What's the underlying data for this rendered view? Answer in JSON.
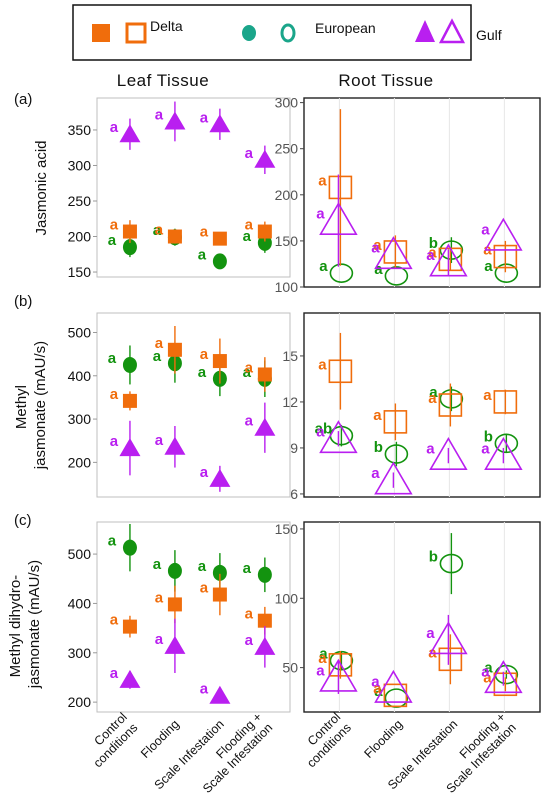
{
  "colors": {
    "Delta": "#f06d0c",
    "European": "#13930f",
    "Gulf": "#b91ff0",
    "European_legend": "#1aa58a"
  },
  "legend": {
    "items": [
      {
        "name": "Delta",
        "marker": "square"
      },
      {
        "name": "European",
        "marker": "circle"
      },
      {
        "name": "Gulf",
        "marker": "triangle"
      }
    ]
  },
  "headers": {
    "leaf": "Leaf  Tissue",
    "root": "Root  Tissue"
  },
  "panel_labels": [
    "(a)",
    "(b)",
    "(c)"
  ],
  "row_ylabels": [
    [
      "Jasmonic acid"
    ],
    [
      "Methyl",
      "jasmonate (mAU/s)"
    ],
    [
      "Methyl dihydro-",
      "jasmonate (mAU/s)"
    ]
  ],
  "x_categories": [
    [
      "Control",
      "conditions"
    ],
    [
      "Flooding"
    ],
    [
      "Scale Infestation"
    ],
    [
      "Flooding +",
      "Scale Infestation"
    ]
  ],
  "chart_data": [
    {
      "type": "scatter",
      "row": "(a)",
      "tissue": "Leaf Tissue",
      "ylabel": "Jasmonic acid",
      "ylim": [
        143,
        395
      ],
      "yticks": [
        150,
        200,
        250,
        300,
        350
      ],
      "series": [
        {
          "name": "Delta",
          "values": [
            207,
            200,
            197,
            207
          ],
          "err": [
            16,
            10,
            0,
            14
          ],
          "letters": [
            "a",
            "a",
            "a",
            "a"
          ]
        },
        {
          "name": "European",
          "values": [
            185,
            199,
            165,
            191
          ],
          "err": [
            14,
            12,
            10,
            14
          ],
          "letters": [
            "a",
            "a",
            "a",
            "a"
          ]
        },
        {
          "name": "Gulf",
          "values": [
            344,
            362,
            358,
            308
          ],
          "err": [
            22,
            28,
            22,
            20
          ],
          "letters": [
            "a",
            "a",
            "a",
            "a"
          ]
        }
      ]
    },
    {
      "type": "scatter",
      "row": "(a)",
      "tissue": "Root Tissue",
      "ylabel": "",
      "ylim": [
        100,
        305
      ],
      "yticks": [
        100,
        150,
        200,
        250,
        300
      ],
      "series": [
        {
          "name": "Delta",
          "values": [
            208,
            138,
            130,
            133
          ],
          "err": [
            85,
            18,
            12,
            17
          ],
          "letters": [
            "a",
            "a",
            "a",
            "a"
          ]
        },
        {
          "name": "European",
          "values": [
            115,
            112,
            140,
            115
          ],
          "err": [
            0,
            0,
            14,
            0
          ],
          "letters": [
            "a",
            "a",
            "b",
            "a"
          ]
        },
        {
          "name": "Gulf",
          "values": [
            172,
            135,
            127,
            155
          ],
          "err": [
            50,
            0,
            14,
            0
          ],
          "letters": [
            "a",
            "a",
            "a",
            "a"
          ]
        }
      ]
    },
    {
      "type": "scatter",
      "row": "(b)",
      "tissue": "Leaf Tissue",
      "ylabel": "Methyl jasmonate (mAU/s)",
      "ylim": [
        120,
        545
      ],
      "yticks": [
        200,
        300,
        400,
        500
      ],
      "series": [
        {
          "name": "Delta",
          "values": [
            342,
            460,
            434,
            403
          ],
          "err": [
            22,
            55,
            52,
            40
          ],
          "letters": [
            "a",
            "a",
            "a",
            "a"
          ]
        },
        {
          "name": "European",
          "values": [
            425,
            429,
            393,
            393
          ],
          "err": [
            45,
            45,
            40,
            42
          ],
          "letters": [
            "a",
            "a",
            "a",
            "a"
          ]
        },
        {
          "name": "Gulf",
          "values": [
            233,
            236,
            162,
            280
          ],
          "err": [
            63,
            48,
            30,
            58
          ],
          "letters": [
            "a",
            "a",
            "a",
            "a"
          ]
        }
      ]
    },
    {
      "type": "scatter",
      "row": "(b)",
      "tissue": "Root Tissue",
      "ylabel": "",
      "ylim": [
        5.8,
        17.8
      ],
      "yticks": [
        6,
        9,
        12,
        15
      ],
      "series": [
        {
          "name": "Delta",
          "values": [
            14.0,
            10.7,
            11.8,
            12.0
          ],
          "err": [
            2.5,
            1.2,
            1.4,
            0.8
          ],
          "letters": [
            "a",
            "a",
            "a",
            "a"
          ]
        },
        {
          "name": "European",
          "values": [
            9.8,
            8.6,
            12.2,
            9.3
          ],
          "err": [
            0.7,
            0.8,
            0.8,
            0.6
          ],
          "letters": [
            "ab",
            "b",
            "a",
            "b"
          ]
        },
        {
          "name": "Gulf",
          "values": [
            9.6,
            6.9,
            8.5,
            8.5
          ],
          "err": [
            0.5,
            0.5,
            0.5,
            0.5
          ],
          "letters": [
            "a",
            "a",
            "a",
            "a"
          ]
        }
      ]
    },
    {
      "type": "scatter",
      "row": "(c)",
      "tissue": "Leaf Tissue",
      "ylabel": "Methyl dihydro-jasmonate (mAU/s)",
      "ylim": [
        180,
        565
      ],
      "yticks": [
        200,
        300,
        400,
        500
      ],
      "series": [
        {
          "name": "Delta",
          "values": [
            353,
            398,
            418,
            365
          ],
          "err": [
            22,
            38,
            42,
            28
          ],
          "letters": [
            "a",
            "a",
            "a",
            "a"
          ]
        },
        {
          "name": "European",
          "values": [
            513,
            466,
            462,
            458
          ],
          "err": [
            48,
            42,
            40,
            35
          ],
          "letters": [
            "a",
            "a",
            "a",
            "a"
          ]
        },
        {
          "name": "Gulf",
          "values": [
            245,
            314,
            213,
            312
          ],
          "err": [
            18,
            55,
            12,
            42
          ],
          "letters": [
            "a",
            "a",
            "a",
            "a"
          ]
        }
      ]
    },
    {
      "type": "scatter",
      "row": "(c)",
      "tissue": "Root Tissue",
      "ylabel": "",
      "ylim": [
        18,
        155
      ],
      "yticks": [
        50,
        100,
        150
      ],
      "series": [
        {
          "name": "Delta",
          "values": [
            52,
            30,
            56,
            38
          ],
          "err": [
            10,
            0,
            18,
            5
          ],
          "letters": [
            "a",
            "a",
            "a",
            "a"
          ]
        },
        {
          "name": "European",
          "values": [
            55,
            28,
            125,
            45
          ],
          "err": [
            7,
            0,
            22,
            3
          ],
          "letters": [
            "a",
            "a",
            "b",
            "a"
          ]
        },
        {
          "name": "Gulf",
          "values": [
            43,
            35,
            70,
            42
          ],
          "err": [
            12,
            0,
            18,
            5
          ],
          "letters": [
            "a",
            "a",
            "a",
            "a"
          ]
        }
      ]
    }
  ]
}
